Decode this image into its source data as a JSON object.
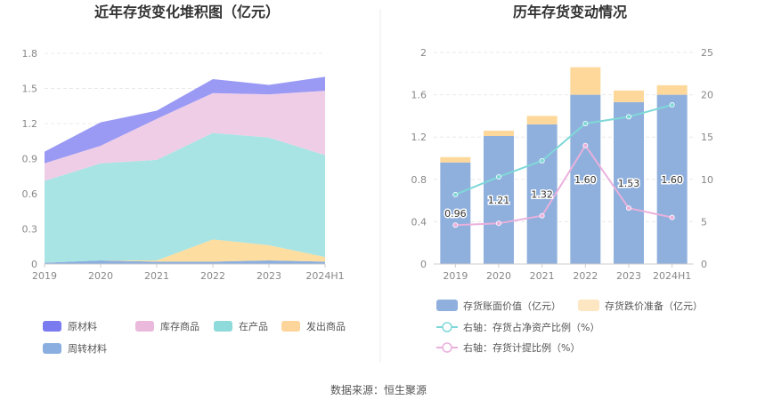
{
  "source_label": "数据来源：恒生聚源",
  "chart_data": [
    {
      "type": "area",
      "stacked": true,
      "title": "近年存货变化堆积图（亿元）",
      "categories": [
        "2019",
        "2020",
        "2021",
        "2022",
        "2023",
        "2024H1"
      ],
      "ylim": [
        0,
        1.8
      ],
      "yticks": [
        "0",
        "0.3",
        "0.6",
        "0.9",
        "1.2",
        "1.5",
        "1.8"
      ],
      "legend_position": "bottom",
      "series": [
        {
          "name": "周转材料",
          "color": "#8aaedf",
          "values": [
            0.01,
            0.03,
            0.02,
            0.02,
            0.03,
            0.02
          ]
        },
        {
          "name": "发出商品",
          "color": "#fddda0",
          "values": [
            0.0,
            0.0,
            0.01,
            0.19,
            0.13,
            0.04
          ]
        },
        {
          "name": "在产品",
          "color": "#a8e4e4",
          "values": [
            0.7,
            0.83,
            0.86,
            0.91,
            0.92,
            0.87
          ]
        },
        {
          "name": "库存商品",
          "color": "#f0cde6",
          "values": [
            0.15,
            0.15,
            0.35,
            0.34,
            0.37,
            0.55
          ]
        },
        {
          "name": "原材料",
          "color": "#9a9af5",
          "values": [
            0.1,
            0.2,
            0.07,
            0.12,
            0.08,
            0.12
          ]
        }
      ],
      "legend_order": [
        "原材料",
        "库存商品",
        "在产品",
        "发出商品",
        "周转材料"
      ],
      "legend_colors": {
        "原材料": "#7b7bf0",
        "库存商品": "#ebb9dc",
        "在产品": "#8fdada",
        "发出商品": "#fdd49a",
        "周转材料": "#8aaedf"
      }
    },
    {
      "type": "bar",
      "title": "历年存货变动情况",
      "categories": [
        "2019",
        "2020",
        "2021",
        "2022",
        "2023",
        "2024H1"
      ],
      "ylim": [
        0,
        2
      ],
      "yticks": [
        "0",
        "0.4",
        "0.8",
        "1.2",
        "1.6",
        "2"
      ],
      "y2lim": [
        0,
        25
      ],
      "y2ticks": [
        "0",
        "5",
        "10",
        "15",
        "20",
        "25"
      ],
      "series": [
        {
          "name": "存货账面价值（亿元）",
          "color": "#8fb0dd",
          "values": [
            0.96,
            1.21,
            1.32,
            1.6,
            1.53,
            1.6
          ],
          "labels": [
            "0.96",
            "1.21",
            "1.32",
            "1.60",
            "1.53",
            "1.60"
          ]
        },
        {
          "name": "存货跌价准备（亿元）",
          "color": "#fdd89a",
          "values": [
            0.05,
            0.05,
            0.08,
            0.26,
            0.11,
            0.09
          ]
        },
        {
          "name": "右轴：存货占净资产比例（%）",
          "color": "#7fd8d8",
          "axis": "right",
          "values": [
            8.2,
            10.3,
            12.2,
            16.6,
            17.4,
            18.8
          ]
        },
        {
          "name": "右轴：存货计提比例（%）",
          "color": "#eab0dc",
          "axis": "right",
          "values": [
            4.6,
            4.8,
            5.7,
            14.0,
            6.6,
            5.5
          ]
        }
      ]
    }
  ]
}
